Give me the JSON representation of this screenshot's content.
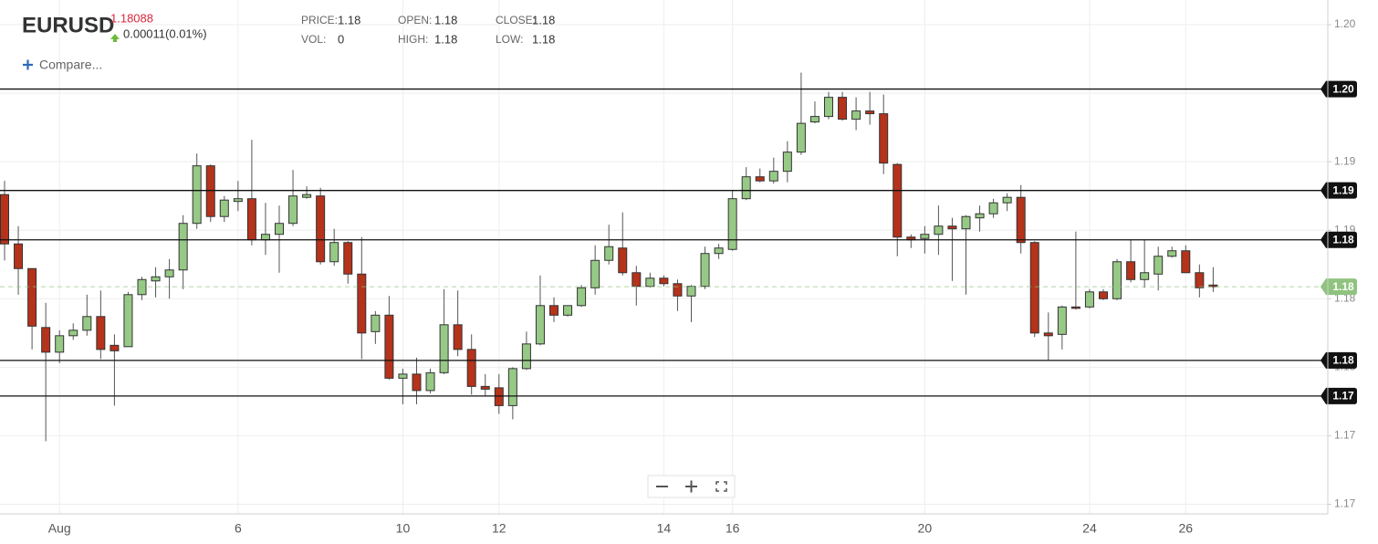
{
  "header": {
    "symbol": "EURUSD",
    "price": "1.18088",
    "change": "0.00011(0.01%)",
    "compare": "Compare...",
    "stats": [
      {
        "key": "PRICE:",
        "value": "1.18"
      },
      {
        "key": "VOL:",
        "value": "0"
      },
      {
        "key": "OPEN:",
        "value": "1.18"
      },
      {
        "key": "HIGH:",
        "value": "1.18"
      },
      {
        "key": "CLOSE:",
        "value": "1.18"
      },
      {
        "key": "LOW:",
        "value": "1.18"
      }
    ]
  },
  "chart_data": {
    "type": "candlestick",
    "up_color": "#97c986",
    "down_color": "#b5321b",
    "grid": true,
    "categories": [
      null,
      null,
      null,
      null,
      "Aug",
      null,
      null,
      null,
      null,
      null,
      null,
      null,
      null,
      null,
      null,
      null,
      null,
      "6",
      null,
      null,
      null,
      null,
      null,
      null,
      null,
      null,
      null,
      null,
      null,
      "10",
      null,
      null,
      null,
      null,
      null,
      null,
      "12",
      null,
      null,
      null,
      null,
      null,
      null,
      null,
      null,
      null,
      null,
      null,
      "14",
      null,
      null,
      null,
      null,
      "16",
      null,
      null,
      null,
      null,
      null,
      null,
      null,
      null,
      null,
      null,
      null,
      null,
      null,
      "20",
      null,
      null,
      null,
      null,
      null,
      null,
      null,
      null,
      null,
      null,
      null,
      "24",
      null,
      null,
      null,
      null,
      null,
      null,
      "26",
      null,
      null
    ],
    "open": [
      1.1876,
      1.184,
      1.1822,
      1.1779,
      1.1761,
      1.1773,
      1.1777,
      1.1787,
      1.1766,
      1.1765,
      1.1803,
      1.1813,
      1.1816,
      1.1821,
      1.1855,
      1.1897,
      1.186,
      1.1871,
      1.1873,
      1.1843,
      1.1847,
      1.1855,
      1.1874,
      1.1875,
      1.1827,
      1.1841,
      1.1818,
      1.1776,
      1.1788,
      1.1742,
      1.1745,
      1.1733,
      1.1746,
      1.1781,
      1.1763,
      1.1736,
      1.1735,
      1.1722,
      1.1749,
      1.1767,
      1.1795,
      1.1788,
      1.1795,
      1.1808,
      1.1828,
      1.1837,
      1.1819,
      1.1809,
      1.1815,
      1.1811,
      1.1802,
      1.1809,
      1.1833,
      1.1836,
      1.1873,
      1.1889,
      1.1886,
      1.1893,
      1.1907,
      1.1929,
      1.1933,
      1.1947,
      1.1931,
      1.1937,
      1.1935,
      1.1898,
      1.1845,
      1.1844,
      1.1847,
      1.1853,
      1.1851,
      1.1859,
      1.1862,
      1.187,
      1.1874,
      1.1841,
      1.1775,
      1.1774,
      1.1794,
      1.1794,
      1.1805,
      1.18,
      1.1827,
      1.1814,
      1.1818,
      1.1831,
      1.1835,
      1.1819,
      1.181
    ],
    "high": [
      1.1886,
      1.1853,
      1.1822,
      1.1797,
      1.1777,
      1.1782,
      1.1803,
      1.1806,
      1.1774,
      1.1805,
      1.1816,
      1.1823,
      1.1829,
      1.1861,
      1.1906,
      1.1898,
      1.1875,
      1.1886,
      1.1916,
      1.187,
      1.1868,
      1.1894,
      1.1882,
      1.1881,
      1.1851,
      1.1842,
      1.1845,
      1.1791,
      1.1802,
      1.1749,
      1.1757,
      1.1749,
      1.1807,
      1.1806,
      1.1774,
      1.1745,
      1.1745,
      1.175,
      1.1776,
      1.1817,
      1.1801,
      1.1795,
      1.181,
      1.1839,
      1.1854,
      1.1863,
      1.1824,
      1.1819,
      1.1817,
      1.1814,
      1.181,
      1.1838,
      1.184,
      1.1879,
      1.1896,
      1.1895,
      1.1903,
      1.1915,
      1.1965,
      1.1944,
      1.1951,
      1.1951,
      1.1947,
      1.1951,
      1.1949,
      1.1899,
      1.1847,
      1.1853,
      1.1868,
      1.1859,
      1.1861,
      1.1868,
      1.1873,
      1.1877,
      1.1883,
      1.1842,
      1.179,
      1.1795,
      1.1849,
      1.1807,
      1.1807,
      1.1829,
      1.1843,
      1.1843,
      1.1838,
      1.1838,
      1.1839,
      1.1825,
      1.1823
    ],
    "low": [
      1.1828,
      1.1803,
      1.1763,
      1.1696,
      1.1753,
      1.177,
      1.1773,
      1.1756,
      1.1722,
      1.1765,
      1.1799,
      1.1801,
      1.18,
      1.1807,
      1.1851,
      1.1856,
      1.1856,
      1.1864,
      1.1839,
      1.1832,
      1.1819,
      1.1853,
      1.1873,
      1.1825,
      1.1824,
      1.1811,
      1.1756,
      1.1767,
      1.1741,
      1.1723,
      1.1723,
      1.1731,
      1.1745,
      1.1758,
      1.173,
      1.1729,
      1.1716,
      1.1712,
      1.1748,
      1.1766,
      1.1783,
      1.1787,
      1.1794,
      1.1803,
      1.1825,
      1.1817,
      1.1795,
      1.1808,
      1.1809,
      1.1791,
      1.1783,
      1.1807,
      1.1829,
      1.1835,
      1.1872,
      1.1885,
      1.1884,
      1.1885,
      1.1905,
      1.1928,
      1.1931,
      1.193,
      1.1923,
      1.1927,
      1.1891,
      1.1831,
      1.1837,
      1.1833,
      1.1832,
      1.1813,
      1.1803,
      1.1849,
      1.1859,
      1.1864,
      1.1833,
      1.1772,
      1.1755,
      1.1763,
      1.1792,
      1.1793,
      1.1799,
      1.1799,
      1.1812,
      1.1808,
      1.1806,
      1.183,
      1.1819,
      1.1801,
      1.1805
    ],
    "close": [
      1.184,
      1.1822,
      1.178,
      1.1761,
      1.1773,
      1.1777,
      1.1787,
      1.1763,
      1.1762,
      1.1803,
      1.1814,
      1.1816,
      1.1821,
      1.1855,
      1.1897,
      1.186,
      1.1872,
      1.1873,
      1.1843,
      1.1847,
      1.1855,
      1.1875,
      1.1876,
      1.1827,
      1.1841,
      1.1818,
      1.1775,
      1.1788,
      1.1742,
      1.1745,
      1.1733,
      1.1746,
      1.1781,
      1.1763,
      1.1736,
      1.1734,
      1.1722,
      1.1749,
      1.1767,
      1.1795,
      1.1788,
      1.1795,
      1.1808,
      1.1828,
      1.1838,
      1.1819,
      1.1809,
      1.1815,
      1.1811,
      1.1802,
      1.1809,
      1.1833,
      1.1837,
      1.1873,
      1.1889,
      1.1886,
      1.1893,
      1.1907,
      1.1928,
      1.1933,
      1.1947,
      1.1931,
      1.1937,
      1.1935,
      1.1899,
      1.1845,
      1.1843,
      1.1847,
      1.1853,
      1.1851,
      1.186,
      1.1862,
      1.187,
      1.1874,
      1.1841,
      1.1775,
      1.1773,
      1.1794,
      1.1793,
      1.1805,
      1.18,
      1.1827,
      1.1814,
      1.1819,
      1.1831,
      1.1835,
      1.1819,
      1.1808,
      1.18088
    ],
    "ylim": [
      1.1643,
      1.2018
    ],
    "yticks": [
      {
        "value": 1.165,
        "label": "1.17"
      },
      {
        "value": 1.17,
        "label": "1.17"
      },
      {
        "value": 1.175,
        "label": "1.18"
      },
      {
        "value": 1.18,
        "label": "1.18"
      },
      {
        "value": 1.185,
        "label": "1.19"
      },
      {
        "value": 1.19,
        "label": "1.19"
      },
      {
        "value": 1.195,
        "label": "1.20"
      },
      {
        "value": 1.2,
        "label": "1.20"
      }
    ],
    "levels": [
      {
        "value": 1.1953,
        "label": "1.20"
      },
      {
        "value": 1.1879,
        "label": "1.19"
      },
      {
        "value": 1.1843,
        "label": "1.18"
      },
      {
        "value": 1.1755,
        "label": "1.18"
      },
      {
        "value": 1.1729,
        "label": "1.17"
      }
    ],
    "last_price": {
      "value": 1.18088,
      "label": "1.18",
      "color": "#8fc37f"
    }
  }
}
